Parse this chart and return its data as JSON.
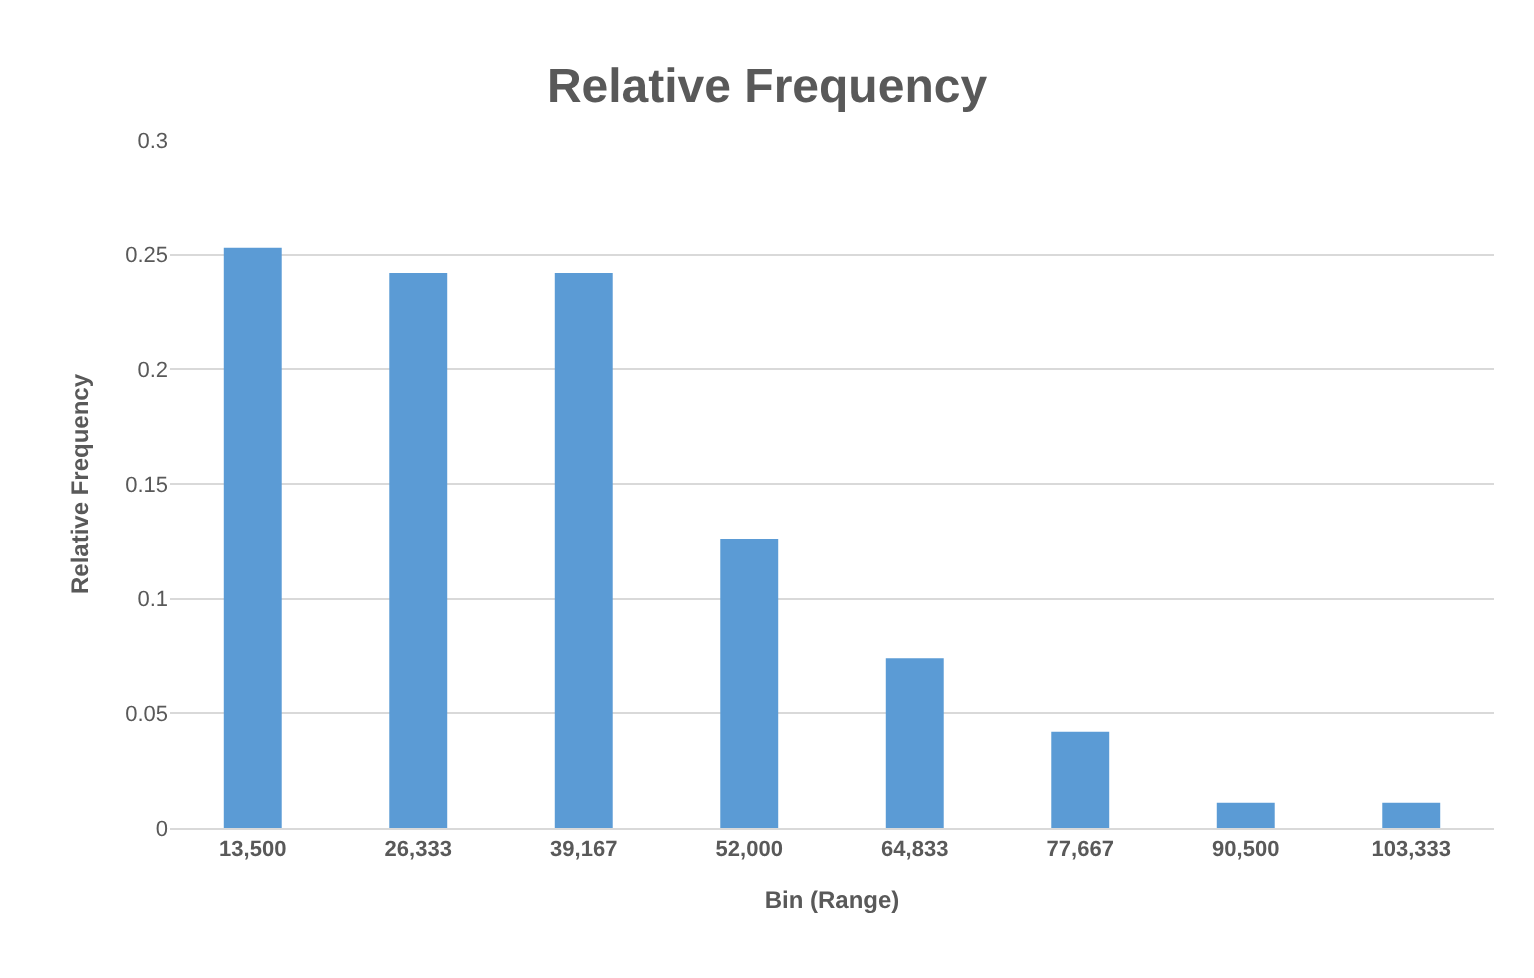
{
  "chart_data": {
    "type": "bar",
    "title": "Relative Frequency",
    "xlabel": "Bin (Range)",
    "ylabel": "Relative Frequency",
    "categories": [
      "13,500",
      "26,333",
      "39,167",
      "52,000",
      "64,833",
      "77,667",
      "90,500",
      "103,333"
    ],
    "values": [
      0.253,
      0.242,
      0.242,
      0.126,
      0.074,
      0.042,
      0.011,
      0.011
    ],
    "color": "#5b9bd5",
    "ylim": [
      0,
      0.3
    ],
    "yticks": [
      0,
      0.05,
      0.1,
      0.15,
      0.2,
      0.25,
      0.3
    ],
    "grid": "y"
  }
}
